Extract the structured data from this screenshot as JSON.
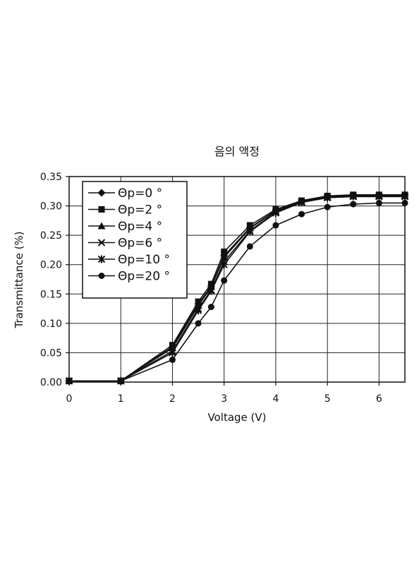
{
  "chart_data": {
    "type": "line",
    "title": "음의 액정",
    "xlabel": "Voltage (V)",
    "ylabel": "Transmittance (%)",
    "xlim": [
      0,
      6.5
    ],
    "ylim": [
      0,
      0.35
    ],
    "xticks": [
      0,
      1,
      2,
      3,
      4,
      5,
      6
    ],
    "yticks": [
      0.0,
      0.05,
      0.1,
      0.15,
      0.2,
      0.25,
      0.3,
      0.35
    ],
    "ytick_labels": [
      "0.00",
      "0.05",
      "0.10",
      "0.15",
      "0.20",
      "0.25",
      "0.30",
      "0.35"
    ],
    "grid": true,
    "legend_position": "top-left",
    "series": [
      {
        "name": "Θp=0 °",
        "marker": "diamond",
        "x": [
          0,
          1,
          2,
          2.5,
          2.75,
          3,
          3.5,
          4,
          4.5,
          5,
          5.5,
          6,
          6.5
        ],
        "y": [
          0.002,
          0.002,
          0.06,
          0.133,
          0.163,
          0.215,
          0.263,
          0.292,
          0.308,
          0.316,
          0.318,
          0.318,
          0.318
        ]
      },
      {
        "name": "Θp=2 °",
        "marker": "square",
        "x": [
          0,
          1,
          2,
          2.5,
          2.75,
          3,
          3.5,
          4,
          4.5,
          5,
          5.5,
          6,
          6.5
        ],
        "y": [
          0.002,
          0.002,
          0.063,
          0.137,
          0.167,
          0.222,
          0.267,
          0.294,
          0.309,
          0.317,
          0.319,
          0.319,
          0.319
        ]
      },
      {
        "name": "Θp=4 °",
        "marker": "triangle",
        "x": [
          0,
          1,
          2,
          2.5,
          2.75,
          3,
          3.5,
          4,
          4.5,
          5,
          5.5,
          6,
          6.5
        ],
        "y": [
          0.002,
          0.002,
          0.058,
          0.13,
          0.162,
          0.212,
          0.262,
          0.291,
          0.307,
          0.315,
          0.317,
          0.317,
          0.317
        ]
      },
      {
        "name": "Θp=6 °",
        "marker": "x",
        "x": [
          0,
          1,
          2,
          2.5,
          2.75,
          3,
          3.5,
          4,
          4.5,
          5,
          5.5,
          6,
          6.5
        ],
        "y": [
          0.002,
          0.002,
          0.053,
          0.125,
          0.157,
          0.205,
          0.258,
          0.289,
          0.306,
          0.314,
          0.316,
          0.316,
          0.316
        ]
      },
      {
        "name": "Θp=10 °",
        "marker": "star",
        "x": [
          0,
          1,
          2,
          2.5,
          2.75,
          3,
          3.5,
          4,
          4.5,
          5,
          5.5,
          6,
          6.5
        ],
        "y": [
          0.002,
          0.002,
          0.05,
          0.122,
          0.155,
          0.2,
          0.256,
          0.288,
          0.306,
          0.314,
          0.316,
          0.316,
          0.316
        ]
      },
      {
        "name": "Θp=20 °",
        "marker": "circle",
        "x": [
          0,
          1,
          2,
          2.5,
          2.75,
          3,
          3.5,
          4,
          4.5,
          5,
          5.5,
          6,
          6.5
        ],
        "y": [
          0.002,
          0.002,
          0.038,
          0.1,
          0.128,
          0.173,
          0.231,
          0.267,
          0.286,
          0.298,
          0.303,
          0.305,
          0.305
        ]
      }
    ]
  }
}
